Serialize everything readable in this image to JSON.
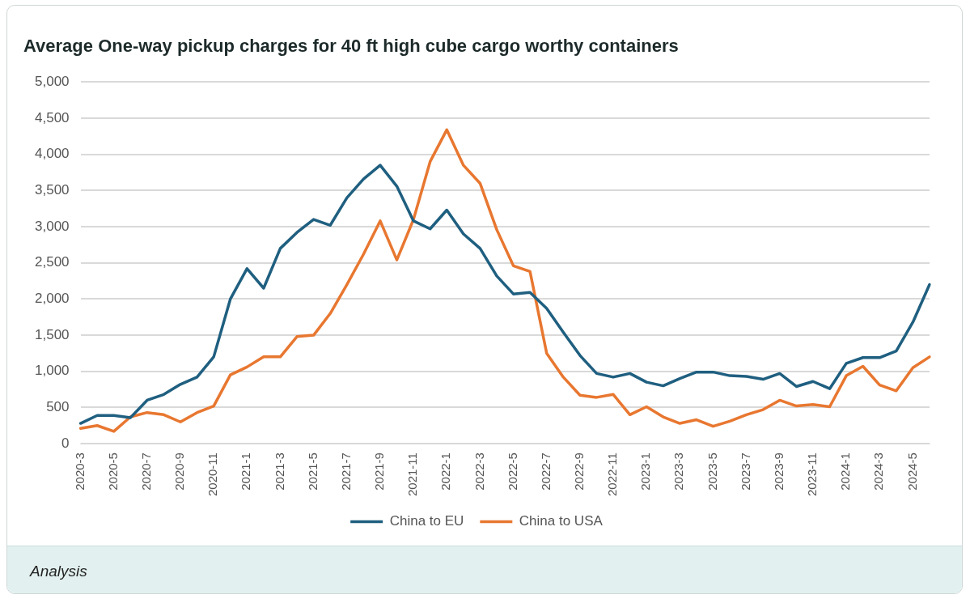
{
  "chart_data": {
    "type": "line",
    "title": "Average One-way pickup charges for 40 ft high cube cargo worthy containers",
    "categories": [
      "2020-3",
      null,
      "2020-5",
      null,
      "2020-7",
      null,
      "2020-9",
      null,
      "2020-11",
      null,
      "2021-1",
      null,
      "2021-3",
      null,
      "2021-5",
      null,
      "2021-7",
      null,
      "2021-9",
      null,
      "2021-11",
      null,
      "2022-1",
      null,
      "2022-3",
      null,
      "2022-5",
      null,
      "2022-7",
      null,
      "2022-9",
      null,
      "2022-11",
      null,
      "2023-1",
      null,
      "2023-3",
      null,
      "2023-5",
      null,
      "2023-7",
      null,
      "2023-9",
      null,
      "2023-11",
      null,
      "2024-1",
      null,
      "2024-3",
      null,
      "2024-5",
      null
    ],
    "series": [
      {
        "name": "China to EU",
        "color": "#1f5f80",
        "values": [
          280,
          390,
          390,
          360,
          600,
          680,
          820,
          920,
          1200,
          2000,
          2420,
          2150,
          2700,
          2920,
          3100,
          3020,
          3400,
          3660,
          3850,
          3560,
          3080,
          2970,
          3230,
          2900,
          2700,
          2320,
          2070,
          2090,
          1870,
          1540,
          1220,
          970,
          920,
          970,
          850,
          800,
          900,
          990,
          990,
          940,
          930,
          890,
          970,
          790,
          860,
          760,
          1110,
          1190,
          1190,
          1280,
          1680,
          2200
        ]
      },
      {
        "name": "China to USA",
        "color": "#e87730",
        "values": [
          210,
          250,
          170,
          370,
          430,
          400,
          300,
          430,
          520,
          950,
          1060,
          1200,
          1200,
          1480,
          1500,
          1800,
          2200,
          2620,
          3080,
          2540,
          3100,
          3900,
          4340,
          3850,
          3600,
          2960,
          2460,
          2380,
          1250,
          920,
          670,
          640,
          680,
          400,
          510,
          370,
          280,
          330,
          240,
          310,
          400,
          470,
          600,
          520,
          540,
          510,
          940,
          1070,
          810,
          730,
          1050,
          1200
        ]
      }
    ],
    "ylim": [
      0,
      5000
    ],
    "yticks": [
      0,
      {
        "value": 500,
        "label": "500"
      },
      {
        "value": 1000,
        "label": "1,000"
      },
      {
        "value": 1500,
        "label": "1,500"
      },
      {
        "value": 2000,
        "label": "2,000"
      },
      {
        "value": 2500,
        "label": "2,500"
      },
      {
        "value": 3000,
        "label": "3,000"
      },
      {
        "value": 3500,
        "label": "3,500"
      },
      {
        "value": 4000,
        "label": "4,000"
      },
      {
        "value": 4500,
        "label": "4,500"
      },
      {
        "value": 5000,
        "label": "5,000"
      }
    ],
    "grid": "y",
    "legend": "bottom",
    "marker": "none",
    "line_style": "solid",
    "annotations": [
      "Analysis"
    ]
  }
}
